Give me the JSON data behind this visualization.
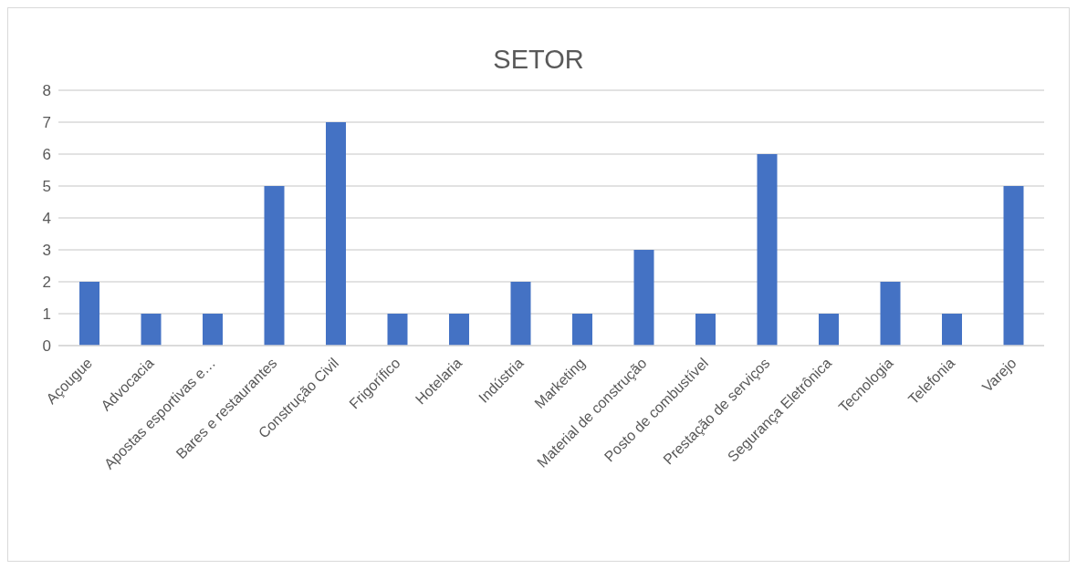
{
  "chart_data": {
    "type": "bar",
    "title": "SETOR",
    "categories": [
      "Açougue",
      "Advocacia",
      "Apostas esportivas e…",
      "Bares e restaurantes",
      "Construção Civil",
      "Frigorífico",
      "Hotelaria",
      "Indústria",
      "Marketing",
      "Material de construção",
      "Posto de combustível",
      "Prestação de serviços",
      "Segurança Eletrônica",
      "Tecnologia",
      "Telefonia",
      "Varejo"
    ],
    "values": [
      2,
      1,
      1,
      5,
      7,
      1,
      1,
      2,
      1,
      3,
      1,
      6,
      1,
      2,
      1,
      5
    ],
    "color": "#4472c4",
    "ylim": [
      0,
      8
    ],
    "yticks": [
      0,
      1,
      2,
      3,
      4,
      5,
      6,
      7,
      8
    ],
    "grid": "y",
    "legend": false
  }
}
